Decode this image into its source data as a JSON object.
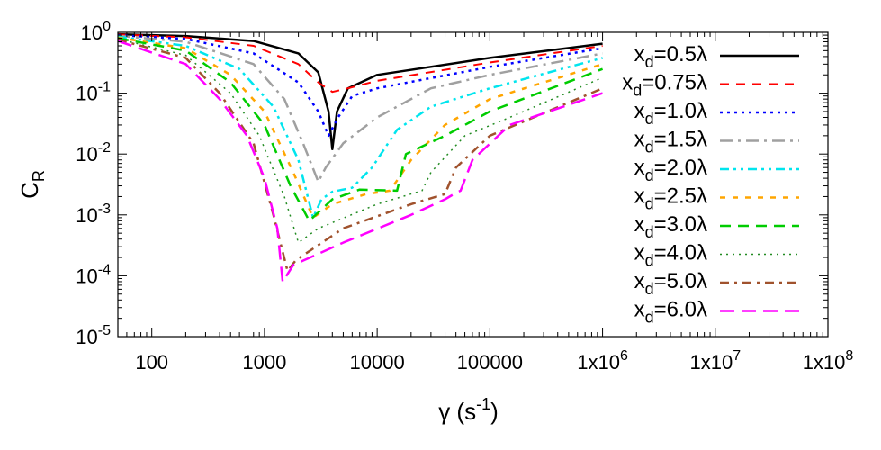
{
  "chart_data": {
    "type": "line",
    "title": "",
    "xlabel": {
      "base": "γ (s",
      "sup": "-1",
      "tail": ")"
    },
    "ylabel": {
      "base": "C",
      "sub": "R"
    },
    "xscale": "log",
    "yscale": "log",
    "xlim": [
      50,
      100000000
    ],
    "ylim": [
      1e-05,
      1
    ],
    "grid": false,
    "legend_position": "top-right",
    "x_ticks": [
      {
        "value": 100,
        "label": "100"
      },
      {
        "value": 1000,
        "label": "1000"
      },
      {
        "value": 10000,
        "label": "10000"
      },
      {
        "value": 100000,
        "label": "100000"
      },
      {
        "value": 1000000,
        "label": "1x10",
        "sup": "6"
      },
      {
        "value": 10000000,
        "label": "1x10",
        "sup": "7"
      },
      {
        "value": 100000000,
        "label": "1x10",
        "sup": "8"
      }
    ],
    "y_ticks": [
      {
        "value": 1,
        "label": "10",
        "sup": "0"
      },
      {
        "value": 0.1,
        "label": "10",
        "sup": "-1"
      },
      {
        "value": 0.01,
        "label": "10",
        "sup": "-2"
      },
      {
        "value": 0.001,
        "label": "10",
        "sup": "-3"
      },
      {
        "value": 0.0001,
        "label": "10",
        "sup": "-4"
      },
      {
        "value": 1e-05,
        "label": "10",
        "sup": "-5"
      }
    ],
    "series": [
      {
        "name": "x_d=0.5λ",
        "label_base": "x",
        "label_sub": "d",
        "label_tail": "=0.5λ",
        "color": "#000000",
        "dash": "",
        "width": 2.5,
        "points": [
          [
            50,
            0.93
          ],
          [
            200,
            0.87
          ],
          [
            800,
            0.72
          ],
          [
            2000,
            0.45
          ],
          [
            3000,
            0.22
          ],
          [
            3700,
            0.05
          ],
          [
            4000,
            0.012
          ],
          [
            4400,
            0.05
          ],
          [
            5500,
            0.12
          ],
          [
            10000,
            0.2
          ],
          [
            100000,
            0.38
          ],
          [
            1000000,
            0.65
          ]
        ]
      },
      {
        "name": "x_d=0.75λ",
        "label_base": "x",
        "label_sub": "d",
        "label_tail": "=0.75λ",
        "color": "#ff0000",
        "dash": "10,8",
        "width": 2,
        "points": [
          [
            50,
            0.92
          ],
          [
            200,
            0.83
          ],
          [
            800,
            0.6
          ],
          [
            2000,
            0.3
          ],
          [
            3000,
            0.15
          ],
          [
            4000,
            0.105
          ],
          [
            5500,
            0.12
          ],
          [
            10000,
            0.16
          ],
          [
            100000,
            0.32
          ],
          [
            1000000,
            0.6
          ]
        ]
      },
      {
        "name": "x_d=1.0λ",
        "label_base": "x",
        "label_sub": "d",
        "label_tail": "=1.0λ",
        "color": "#0000ff",
        "dash": "3,5",
        "width": 2.5,
        "points": [
          [
            50,
            0.9
          ],
          [
            200,
            0.78
          ],
          [
            800,
            0.45
          ],
          [
            2000,
            0.15
          ],
          [
            3000,
            0.05
          ],
          [
            3700,
            0.02
          ],
          [
            4500,
            0.04
          ],
          [
            6000,
            0.09
          ],
          [
            10000,
            0.12
          ],
          [
            100000,
            0.27
          ],
          [
            1000000,
            0.55
          ]
        ]
      },
      {
        "name": "x_d=1.5λ",
        "label_base": "x",
        "label_sub": "d",
        "label_tail": "=1.5λ",
        "color": "#a0a0a0",
        "dash": "14,6,3,6",
        "width": 2.5,
        "points": [
          [
            50,
            0.88
          ],
          [
            200,
            0.7
          ],
          [
            800,
            0.3
          ],
          [
            1500,
            0.08
          ],
          [
            2200,
            0.015
          ],
          [
            3000,
            0.0035
          ],
          [
            3500,
            0.006
          ],
          [
            5000,
            0.015
          ],
          [
            10000,
            0.04
          ],
          [
            30000,
            0.12
          ],
          [
            100000,
            0.2
          ],
          [
            1000000,
            0.45
          ]
        ]
      },
      {
        "name": "x_d=2.0λ",
        "label_base": "x",
        "label_sub": "d",
        "label_tail": "=2.0λ",
        "color": "#00e5ee",
        "dash": "10,5,3,5,3,5",
        "width": 2.5,
        "points": [
          [
            50,
            0.85
          ],
          [
            200,
            0.6
          ],
          [
            600,
            0.25
          ],
          [
            1200,
            0.06
          ],
          [
            2000,
            0.008
          ],
          [
            2700,
            0.0009
          ],
          [
            3200,
            0.0018
          ],
          [
            4000,
            0.0024
          ],
          [
            6000,
            0.0028
          ],
          [
            9000,
            0.006
          ],
          [
            15000,
            0.025
          ],
          [
            30000,
            0.06
          ],
          [
            100000,
            0.12
          ],
          [
            1000000,
            0.38
          ]
        ]
      },
      {
        "name": "x_d=2.5λ",
        "label_base": "x",
        "label_sub": "d",
        "label_tail": "=2.5λ",
        "color": "#ffa500",
        "dash": "6,8",
        "width": 2.5,
        "points": [
          [
            50,
            0.82
          ],
          [
            200,
            0.55
          ],
          [
            500,
            0.2
          ],
          [
            1000,
            0.05
          ],
          [
            1800,
            0.005
          ],
          [
            2700,
            0.0009
          ],
          [
            4000,
            0.0015
          ],
          [
            8000,
            0.0022
          ],
          [
            13000,
            0.0025
          ],
          [
            20000,
            0.008
          ],
          [
            40000,
            0.03
          ],
          [
            100000,
            0.08
          ],
          [
            1000000,
            0.3
          ]
        ]
      },
      {
        "name": "x_d=3.0λ",
        "label_base": "x",
        "label_sub": "d",
        "label_tail": "=3.0λ",
        "color": "#00cc00",
        "dash": "12,8",
        "width": 2.5,
        "points": [
          [
            50,
            0.8
          ],
          [
            200,
            0.5
          ],
          [
            500,
            0.15
          ],
          [
            1000,
            0.03
          ],
          [
            1700,
            0.003
          ],
          [
            2500,
            0.0008
          ],
          [
            4000,
            0.0018
          ],
          [
            7000,
            0.0026
          ],
          [
            15000,
            0.0025
          ],
          [
            18000,
            0.01
          ],
          [
            40000,
            0.02
          ],
          [
            100000,
            0.05
          ],
          [
            1000000,
            0.25
          ]
        ]
      },
      {
        "name": "x_d=4.0λ",
        "label_base": "x",
        "label_sub": "d",
        "label_tail": "=4.0λ",
        "color": "#228b22",
        "dash": "2,5",
        "width": 1.5,
        "points": [
          [
            50,
            0.78
          ],
          [
            200,
            0.42
          ],
          [
            500,
            0.1
          ],
          [
            900,
            0.02
          ],
          [
            1500,
            0.002
          ],
          [
            2000,
            0.00035
          ],
          [
            3000,
            0.0006
          ],
          [
            10000,
            0.0015
          ],
          [
            25000,
            0.0025
          ],
          [
            30000,
            0.005
          ],
          [
            60000,
            0.02
          ],
          [
            150000,
            0.04
          ],
          [
            1000000,
            0.18
          ]
        ]
      },
      {
        "name": "x_d=5.0λ",
        "label_base": "x",
        "label_sub": "d",
        "label_tail": "=5.0λ",
        "color": "#a0522d",
        "dash": "10,6,3,6",
        "width": 2.5,
        "points": [
          [
            50,
            0.76
          ],
          [
            200,
            0.38
          ],
          [
            400,
            0.1
          ],
          [
            800,
            0.015
          ],
          [
            1200,
            0.001
          ],
          [
            1600,
            0.00012
          ],
          [
            1900,
            0.00018
          ],
          [
            5000,
            0.0006
          ],
          [
            20000,
            0.0015
          ],
          [
            40000,
            0.0022
          ],
          [
            50000,
            0.006
          ],
          [
            100000,
            0.02
          ],
          [
            1000000,
            0.12
          ]
        ]
      },
      {
        "name": "x_d=6.0λ",
        "label_base": "x",
        "label_sub": "d",
        "label_tail": "=6.0λ",
        "color": "#ff00ff",
        "dash": "16,8",
        "width": 2.5,
        "points": [
          [
            50,
            0.72
          ],
          [
            200,
            0.3
          ],
          [
            400,
            0.08
          ],
          [
            700,
            0.02
          ],
          [
            1000,
            0.004
          ],
          [
            1300,
            0.0006
          ],
          [
            1450,
            8e-05
          ],
          [
            1800,
            0.00015
          ],
          [
            5000,
            0.00035
          ],
          [
            20000,
            0.001
          ],
          [
            40000,
            0.0018
          ],
          [
            48000,
            0.0022
          ],
          [
            55000,
            0.0025
          ],
          [
            70000,
            0.008
          ],
          [
            150000,
            0.03
          ],
          [
            1000000,
            0.1
          ]
        ]
      }
    ]
  }
}
